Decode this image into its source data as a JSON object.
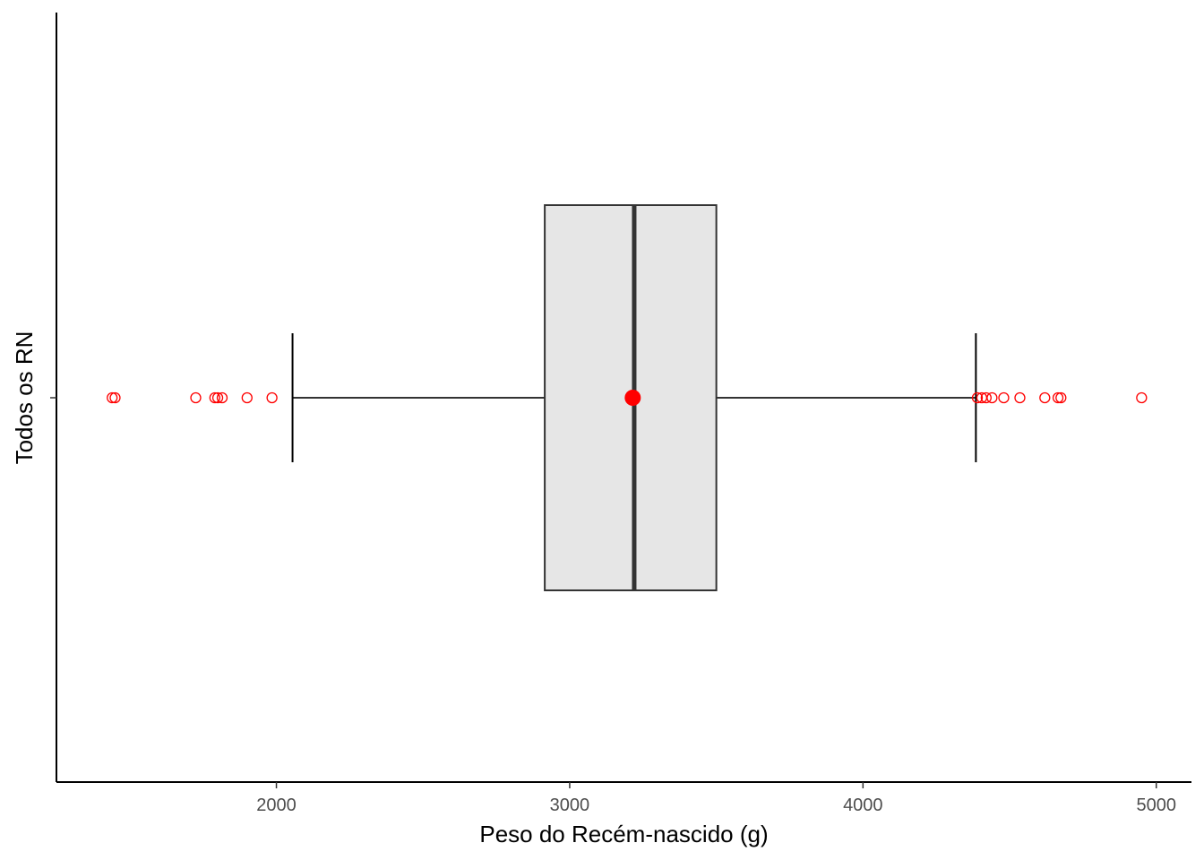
{
  "chart_data": {
    "type": "boxplot",
    "orientation": "horizontal",
    "title": "",
    "xlabel": "Peso do Recém-nascido (g)",
    "ylabel": "Todos os RN",
    "xlim": [
      1250,
      5120
    ],
    "x_ticks": [
      2000,
      3000,
      4000,
      5000
    ],
    "x_tick_labels": [
      "2000",
      "3000",
      "4000",
      "5000"
    ],
    "grid": false,
    "box": {
      "whisker_low": 2055,
      "q1": 2915,
      "median": 3220,
      "q3": 3500,
      "whisker_high": 4385,
      "mean": 3215,
      "outliers": [
        1440,
        1450,
        1725,
        1790,
        1800,
        1815,
        1900,
        1985,
        4390,
        4405,
        4420,
        4440,
        4480,
        4535,
        4620,
        4665,
        4675,
        4950
      ]
    },
    "colors": {
      "box_fill": "#e6e6e6",
      "box_stroke": "#333333",
      "outlier": "#ff0000",
      "mean_point": "#ff0000"
    }
  }
}
